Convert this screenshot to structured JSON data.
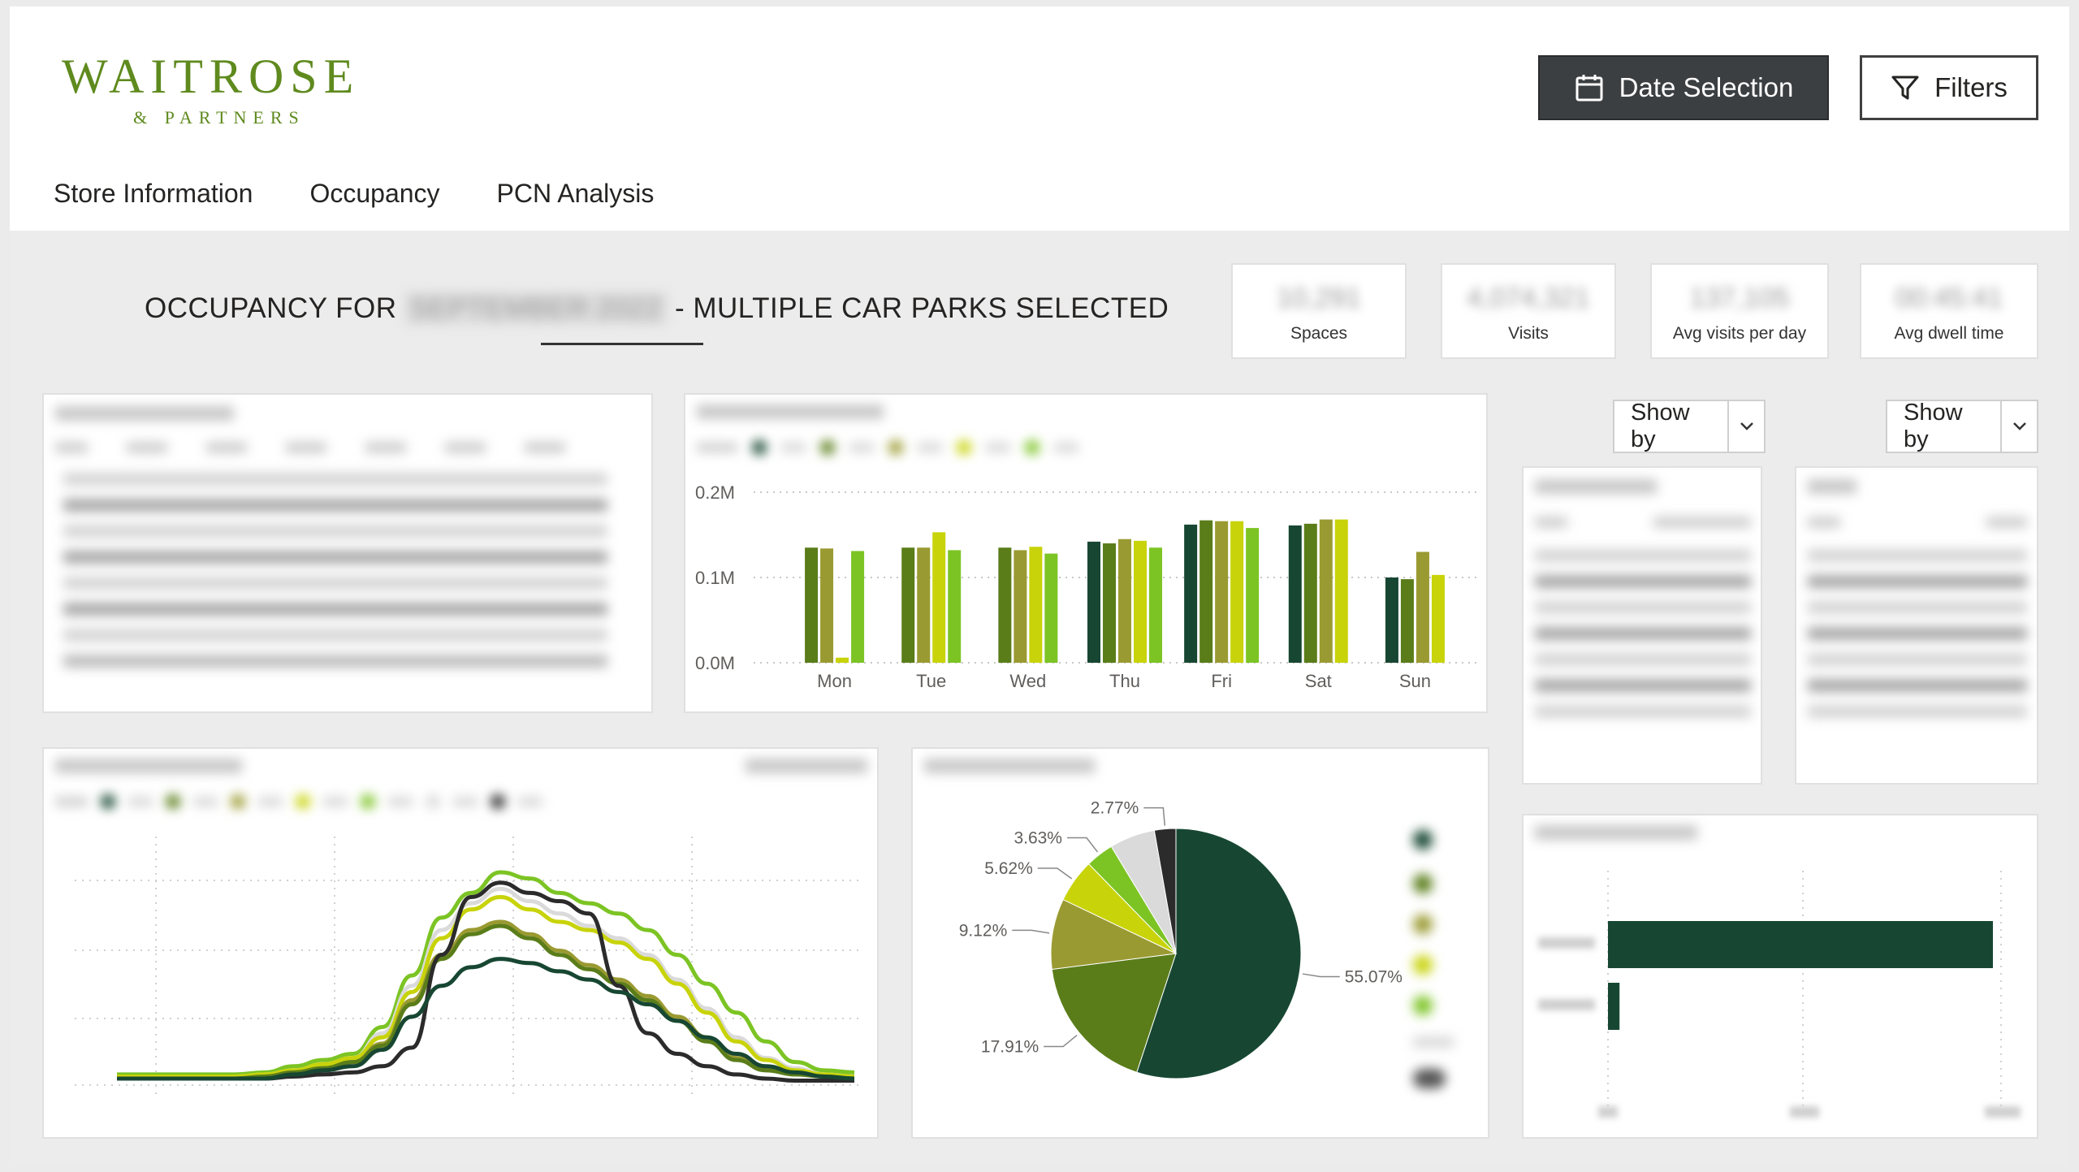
{
  "logo": {
    "brand": "WAITROSE",
    "partners": "& PARTNERS"
  },
  "header": {
    "date_button": {
      "label": "Date Selection",
      "icon": "calendar-icon"
    },
    "filters_button": {
      "label": "Filters",
      "icon": "filter-icon"
    }
  },
  "nav": {
    "items": [
      "Store Information",
      "Occupancy",
      "PCN Analysis"
    ]
  },
  "page": {
    "title_prefix": "OCCUPANCY FOR",
    "title_month": "SEPTEMBER 2022",
    "title_suffix": "- MULTIPLE CAR PARKS SELECTED"
  },
  "kpis": [
    {
      "label": "Spaces",
      "value": "10,291"
    },
    {
      "label": "Visits",
      "value": "4,074,321"
    },
    {
      "label": "Avg visits per day",
      "value": "137,105"
    },
    {
      "label": "Avg dwell time",
      "value": "00:45:41"
    }
  ],
  "controls": {
    "show_by_1": "Show by",
    "show_by_2": "Show by"
  },
  "colors": {
    "dark_green": "#174732",
    "olive_green": "#5a7d1a",
    "khaki": "#9a9a32",
    "yellow_green": "#c8d30a",
    "light_green": "#7cc424",
    "light_grey": "#dadada",
    "near_black": "#2b2b2b"
  },
  "chart_data": [
    {
      "type": "bar",
      "categories": [
        "Mon",
        "Tue",
        "Wed",
        "Thu",
        "Fri",
        "Sat",
        "Sun"
      ],
      "ylim": [
        0,
        0.2
      ],
      "y_ticks": [
        "0.0M",
        "0.1M",
        "0.2M"
      ],
      "series": [
        {
          "color": "#174732",
          "values": [
            0,
            0,
            0,
            0.142,
            0.162,
            0.161,
            0.1
          ]
        },
        {
          "color": "#5a7d1a",
          "values": [
            0.135,
            0.135,
            0.135,
            0.14,
            0.167,
            0.163,
            0.098
          ]
        },
        {
          "color": "#9a9a32",
          "values": [
            0.134,
            0.135,
            0.132,
            0.145,
            0.166,
            0.168,
            0.13
          ]
        },
        {
          "color": "#c8d30a",
          "values": [
            0.006,
            0.153,
            0.136,
            0.143,
            0.166,
            0.168,
            0.103
          ]
        },
        {
          "color": "#7cc424",
          "values": [
            0.131,
            0.132,
            0.128,
            0.135,
            0.158,
            0,
            0
          ]
        }
      ]
    },
    {
      "type": "pie",
      "slices": [
        {
          "label": "55.07%",
          "value": 55.07,
          "color": "#174732"
        },
        {
          "label": "17.91%",
          "value": 17.91,
          "color": "#5a7d1a"
        },
        {
          "label": "9.12%",
          "value": 9.12,
          "color": "#9a9a32"
        },
        {
          "label": "5.62%",
          "value": 5.62,
          "color": "#c8d30a"
        },
        {
          "label": "3.63%",
          "value": 3.63,
          "color": "#7cc424"
        },
        {
          "label": "",
          "value": 5.88,
          "color": "#dadada"
        },
        {
          "label": "2.77%",
          "value": 2.77,
          "color": "#2b2b2b"
        }
      ]
    },
    {
      "type": "line",
      "ylim": [
        0,
        1
      ],
      "series": [
        {
          "color": "#7cc424",
          "values": [
            0.02,
            0.02,
            0.02,
            0.02,
            0.02,
            0.03,
            0.06,
            0.09,
            0.12,
            0.25,
            0.5,
            0.78,
            0.9,
            1.0,
            0.97,
            0.9,
            0.85,
            0.8,
            0.72,
            0.6,
            0.46,
            0.32,
            0.18,
            0.08,
            0.04,
            0.03
          ]
        },
        {
          "color": "#dadada",
          "values": [
            0.01,
            0.01,
            0.01,
            0.01,
            0.01,
            0.02,
            0.04,
            0.07,
            0.1,
            0.22,
            0.45,
            0.72,
            0.85,
            0.92,
            0.86,
            0.8,
            0.74,
            0.68,
            0.6,
            0.48,
            0.34,
            0.2,
            0.1,
            0.05,
            0.02,
            0.01
          ]
        },
        {
          "color": "#c8d30a",
          "values": [
            0.01,
            0.01,
            0.01,
            0.01,
            0.01,
            0.02,
            0.04,
            0.07,
            0.1,
            0.2,
            0.42,
            0.68,
            0.82,
            0.88,
            0.82,
            0.76,
            0.72,
            0.66,
            0.58,
            0.46,
            0.32,
            0.18,
            0.09,
            0.04,
            0.02,
            0.01
          ]
        },
        {
          "color": "#9a9a32",
          "values": [
            0.0,
            0.0,
            0.0,
            0.0,
            0.0,
            0.01,
            0.03,
            0.05,
            0.08,
            0.17,
            0.38,
            0.6,
            0.72,
            0.76,
            0.7,
            0.62,
            0.55,
            0.48,
            0.4,
            0.3,
            0.2,
            0.1,
            0.05,
            0.02,
            0.01,
            0.0
          ]
        },
        {
          "color": "#5a7d1a",
          "values": [
            0.0,
            0.0,
            0.0,
            0.0,
            0.0,
            0.01,
            0.03,
            0.05,
            0.08,
            0.16,
            0.36,
            0.58,
            0.7,
            0.74,
            0.68,
            0.6,
            0.53,
            0.46,
            0.38,
            0.28,
            0.18,
            0.09,
            0.04,
            0.02,
            0.01,
            0.0
          ]
        },
        {
          "color": "#2b2b2b",
          "values": [
            0.0,
            0.0,
            0.0,
            0.0,
            0.0,
            0.0,
            0.01,
            0.02,
            0.03,
            0.06,
            0.15,
            0.6,
            0.88,
            0.95,
            0.9,
            0.86,
            0.8,
            0.45,
            0.22,
            0.12,
            0.06,
            0.02,
            0.0,
            -0.01,
            -0.01,
            -0.01
          ]
        },
        {
          "color": "#174732",
          "values": [
            0.0,
            0.0,
            0.0,
            0.0,
            0.0,
            0.0,
            0.02,
            0.04,
            0.06,
            0.14,
            0.3,
            0.45,
            0.54,
            0.58,
            0.56,
            0.52,
            0.48,
            0.42,
            0.36,
            0.28,
            0.2,
            0.12,
            0.06,
            0.03,
            0.01,
            0.0
          ]
        }
      ]
    },
    {
      "type": "bar",
      "orientation": "horizontal",
      "values": [
        1.0,
        0.03
      ],
      "color": "#174732"
    }
  ]
}
